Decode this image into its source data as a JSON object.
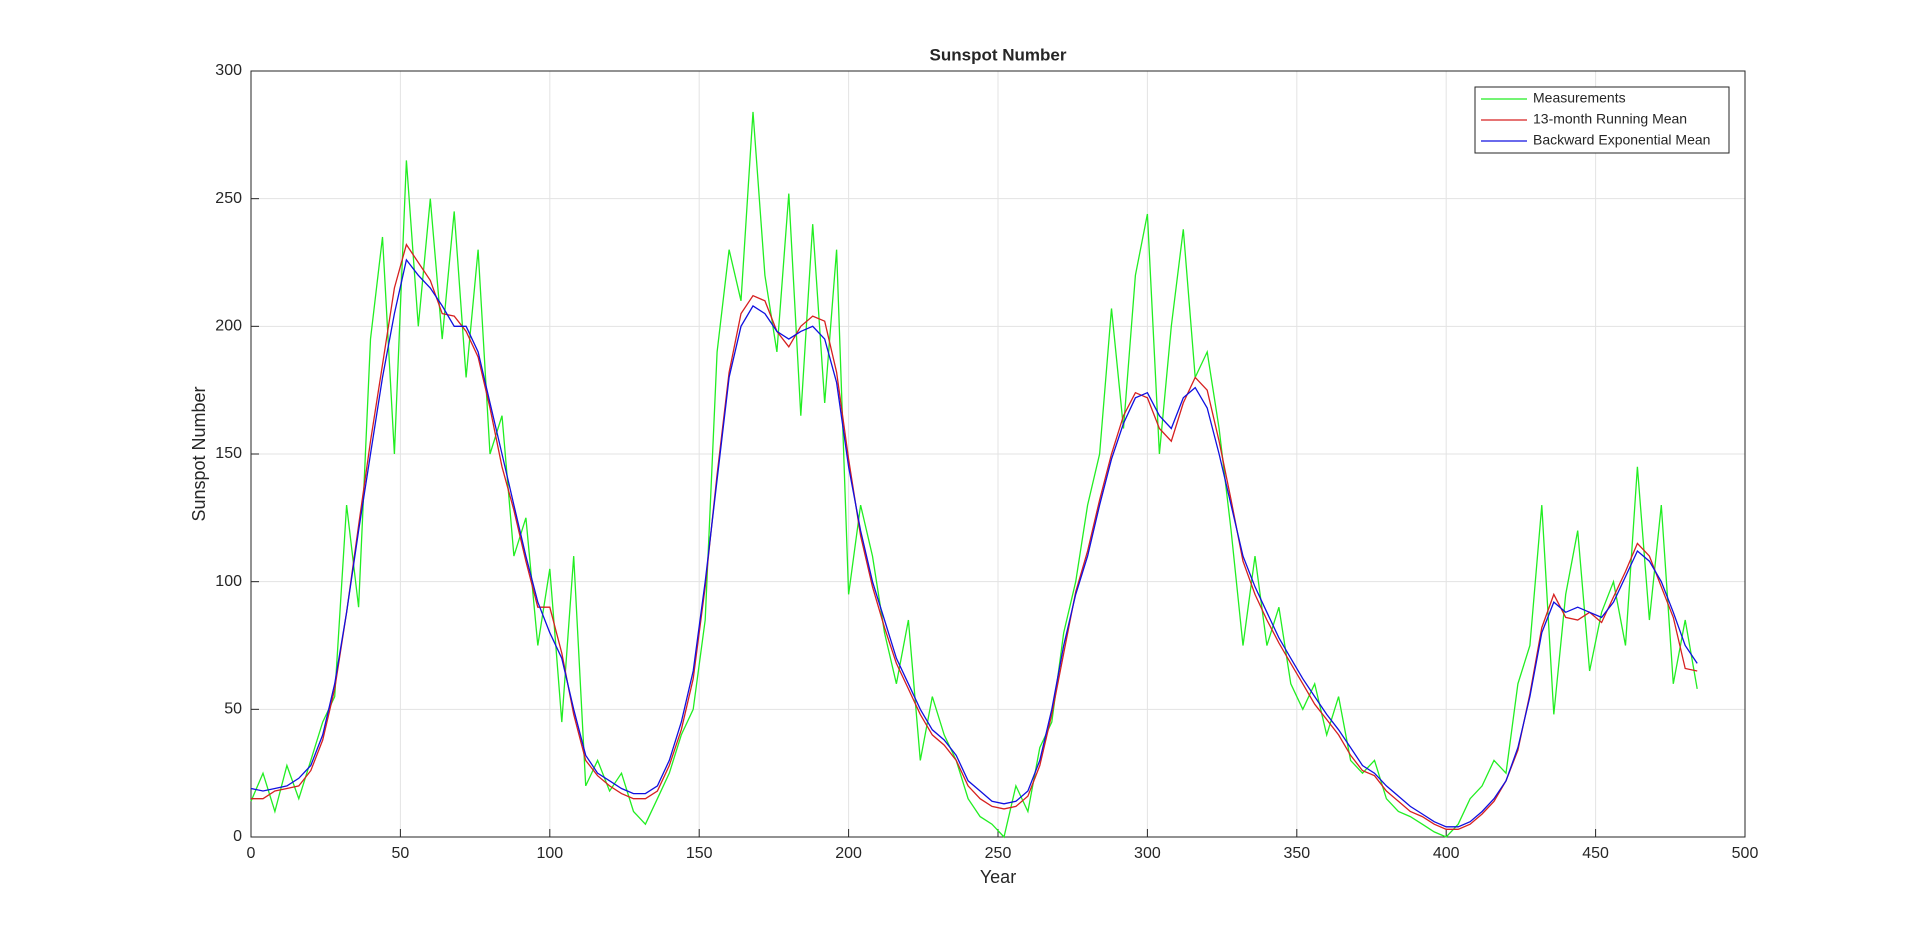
{
  "chart_data": {
    "type": "line",
    "title": "Sunspot Number",
    "xlabel": "Year",
    "ylabel": "Sunspot Number",
    "x": [
      0,
      4,
      8,
      12,
      16,
      20,
      24,
      28,
      32,
      36,
      40,
      44,
      48,
      52,
      56,
      60,
      64,
      68,
      72,
      76,
      80,
      84,
      88,
      92,
      96,
      100,
      104,
      108,
      112,
      116,
      120,
      124,
      128,
      132,
      136,
      140,
      144,
      148,
      152,
      156,
      160,
      164,
      168,
      172,
      176,
      180,
      184,
      188,
      192,
      196,
      200,
      204,
      208,
      212,
      216,
      220,
      224,
      228,
      232,
      236,
      240,
      244,
      248,
      252,
      256,
      260,
      264,
      268,
      272,
      276,
      280,
      284,
      288,
      292,
      296,
      300,
      304,
      308,
      312,
      316,
      320,
      324,
      328,
      332,
      336,
      340,
      344,
      348,
      352,
      356,
      360,
      364,
      368,
      372,
      376,
      380,
      384,
      388,
      392,
      396,
      400,
      404,
      408,
      412,
      416,
      420,
      424,
      428,
      432,
      436,
      440,
      444,
      448,
      452,
      456,
      460,
      464,
      468,
      472,
      476,
      480,
      484
    ],
    "series": [
      {
        "name": "Measurements",
        "color": "#22ee22",
        "values": [
          14,
          25,
          10,
          28,
          15,
          30,
          45,
          55,
          130,
          90,
          195,
          235,
          150,
          265,
          200,
          250,
          195,
          245,
          180,
          230,
          150,
          165,
          110,
          125,
          75,
          105,
          45,
          110,
          20,
          30,
          18,
          25,
          10,
          5,
          15,
          25,
          40,
          50,
          85,
          190,
          230,
          210,
          284,
          220,
          190,
          252,
          165,
          240,
          170,
          230,
          95,
          130,
          110,
          80,
          60,
          85,
          30,
          55,
          40,
          30,
          15,
          8,
          5,
          0,
          20,
          10,
          35,
          45,
          80,
          100,
          130,
          150,
          207,
          160,
          220,
          244,
          150,
          200,
          238,
          180,
          190,
          160,
          120,
          75,
          110,
          75,
          90,
          60,
          50,
          60,
          40,
          55,
          30,
          25,
          30,
          15,
          10,
          8,
          5,
          2,
          0,
          5,
          15,
          20,
          30,
          25,
          60,
          75,
          130,
          48,
          95,
          120,
          65,
          88,
          100,
          75,
          145,
          85,
          130,
          60,
          85,
          58
        ]
      },
      {
        "name": "13-month Running Mean",
        "color": "#d62020",
        "values": [
          15,
          15,
          18,
          19,
          20,
          26,
          38,
          58,
          88,
          122,
          155,
          185,
          215,
          232,
          225,
          218,
          205,
          204,
          198,
          188,
          168,
          145,
          128,
          108,
          90,
          90,
          72,
          48,
          30,
          24,
          20,
          17,
          15,
          15,
          18,
          28,
          42,
          62,
          98,
          142,
          182,
          205,
          212,
          210,
          198,
          192,
          200,
          204,
          202,
          182,
          148,
          118,
          98,
          82,
          68,
          58,
          48,
          40,
          36,
          30,
          20,
          15,
          12,
          11,
          12,
          16,
          28,
          48,
          72,
          96,
          112,
          132,
          150,
          165,
          174,
          172,
          160,
          155,
          170,
          180,
          175,
          155,
          132,
          108,
          95,
          85,
          76,
          68,
          60,
          52,
          46,
          40,
          32,
          26,
          24,
          18,
          14,
          10,
          8,
          5,
          3,
          3,
          5,
          9,
          14,
          22,
          34,
          56,
          82,
          95,
          86,
          85,
          88,
          84,
          94,
          104,
          115,
          110,
          98,
          86,
          66,
          65
        ]
      },
      {
        "name": "Backward Exponential Mean",
        "color": "#1010e0",
        "values": [
          19,
          18,
          19,
          20,
          23,
          28,
          40,
          60,
          88,
          120,
          150,
          180,
          205,
          226,
          220,
          215,
          208,
          200,
          200,
          190,
          170,
          150,
          130,
          110,
          92,
          80,
          70,
          50,
          32,
          25,
          22,
          19,
          17,
          17,
          20,
          30,
          45,
          65,
          100,
          140,
          180,
          200,
          208,
          205,
          198,
          195,
          198,
          200,
          195,
          178,
          145,
          120,
          100,
          85,
          70,
          60,
          50,
          42,
          38,
          32,
          22,
          18,
          14,
          13,
          14,
          18,
          30,
          50,
          75,
          95,
          110,
          130,
          148,
          162,
          172,
          174,
          165,
          160,
          172,
          176,
          168,
          150,
          130,
          110,
          98,
          88,
          78,
          70,
          62,
          55,
          48,
          42,
          35,
          28,
          25,
          20,
          16,
          12,
          9,
          6,
          4,
          4,
          6,
          10,
          15,
          22,
          35,
          55,
          80,
          92,
          88,
          90,
          88,
          86,
          92,
          102,
          112,
          108,
          100,
          88,
          75,
          68
        ]
      }
    ],
    "xlim": [
      0,
      500
    ],
    "xticks": [
      0,
      50,
      100,
      150,
      200,
      250,
      300,
      350,
      400,
      450,
      500
    ],
    "ylim": [
      0,
      300
    ],
    "yticks": [
      0,
      50,
      100,
      150,
      200,
      250,
      300
    ],
    "grid": true,
    "legend": "upper right"
  }
}
